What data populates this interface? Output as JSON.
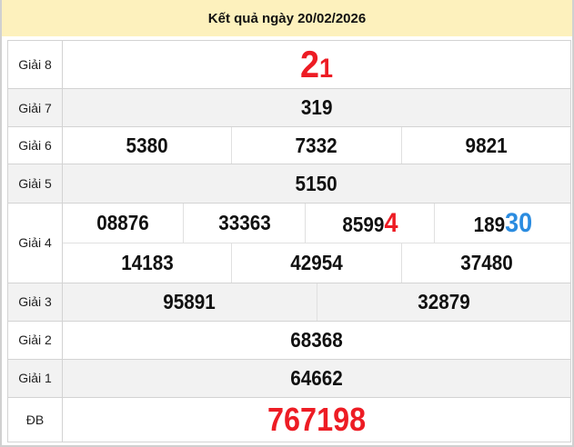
{
  "header": {
    "title": "Kết quả ngày 20/02/2026"
  },
  "colors": {
    "header_bg": "#fdf1bd",
    "highlight_red": "#ed1c24",
    "highlight_blue": "#2b8ce0",
    "row_alt": "#f2f2f2"
  },
  "prizes": {
    "g8": {
      "label": "Giải 8",
      "main": "2",
      "tail": "1"
    },
    "g7": {
      "label": "Giải 7",
      "values": [
        "319"
      ]
    },
    "g6": {
      "label": "Giải 6",
      "values": [
        "5380",
        "7332",
        "9821"
      ]
    },
    "g5": {
      "label": "Giải 5",
      "values": [
        "5150"
      ]
    },
    "g4": {
      "label": "Giải 4",
      "row1": [
        {
          "main": "08876",
          "tail": ""
        },
        {
          "main": "33363",
          "tail": ""
        },
        {
          "main": "8599",
          "tail": "4"
        },
        {
          "main": "189",
          "tail": "30"
        }
      ],
      "row2": [
        "14183",
        "42954",
        "37480"
      ]
    },
    "g3": {
      "label": "Giải 3",
      "values": [
        "95891",
        "32879"
      ]
    },
    "g2": {
      "label": "Giải 2",
      "values": [
        "68368"
      ]
    },
    "g1": {
      "label": "Giải 1",
      "values": [
        "64662"
      ]
    },
    "db": {
      "label": "ĐB",
      "values": [
        "767198"
      ]
    }
  }
}
